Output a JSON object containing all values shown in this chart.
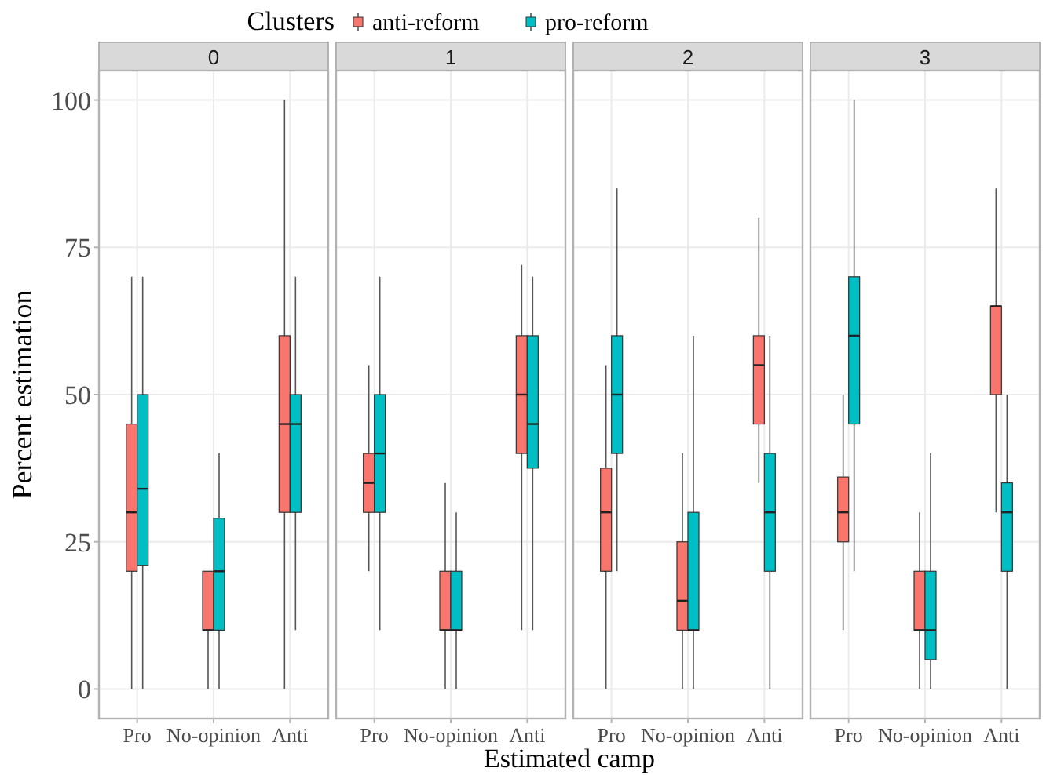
{
  "chart_data": [
    {
      "type": "box",
      "title": "0",
      "xlabel": "Estimated camp",
      "ylabel": "Percent estimation",
      "legend_title": "Clusters",
      "legend": "top",
      "grid": true,
      "categories": [
        "Pro",
        "No-opinion",
        "Anti"
      ],
      "ylim": [
        -5,
        105
      ],
      "yticks": [
        0,
        25,
        50,
        75,
        100
      ],
      "series": [
        {
          "name": "anti-reform",
          "color": "#f8766d",
          "boxes": [
            {
              "low": 0,
              "q1": 20,
              "median": 30,
              "q3": 45,
              "high": 70
            },
            {
              "low": 0,
              "q1": 10,
              "median": 10,
              "q3": 20,
              "high": 20
            },
            {
              "low": 0,
              "q1": 30,
              "median": 45,
              "q3": 60,
              "high": 100
            }
          ]
        },
        {
          "name": "pro-reform",
          "color": "#00bfc4",
          "boxes": [
            {
              "low": 0,
              "q1": 21,
              "median": 34,
              "q3": 50,
              "high": 70
            },
            {
              "low": 0,
              "q1": 10,
              "median": 20,
              "q3": 29,
              "high": 40
            },
            {
              "low": 10,
              "q1": 30,
              "median": 45,
              "q3": 50,
              "high": 70
            }
          ]
        }
      ]
    },
    {
      "type": "box",
      "title": "1",
      "grid": true,
      "tick_labels": "x",
      "categories": [
        "Pro",
        "No-opinion",
        "Anti"
      ],
      "ylim": [
        -5,
        105
      ],
      "yticks": [
        0,
        25,
        50,
        75,
        100
      ],
      "series": [
        {
          "color": "#f8766d",
          "boxes": [
            {
              "low": 20,
              "q1": 30,
              "median": 35,
              "q3": 40,
              "high": 55
            },
            {
              "low": 0,
              "q1": 10,
              "median": 10,
              "q3": 20,
              "high": 35
            },
            {
              "low": 10,
              "q1": 40,
              "median": 50,
              "q3": 60,
              "high": 72
            }
          ]
        },
        {
          "color": "#00bfc4",
          "boxes": [
            {
              "low": 10,
              "q1": 30,
              "median": 40,
              "q3": 50,
              "high": 70
            },
            {
              "low": 0,
              "q1": 10,
              "median": 10,
              "q3": 20,
              "high": 30
            },
            {
              "low": 10,
              "q1": 37.5,
              "median": 45,
              "q3": 60,
              "high": 70
            }
          ]
        }
      ]
    },
    {
      "type": "box",
      "title": "2",
      "grid": true,
      "tick_labels": "x",
      "categories": [
        "Pro",
        "No-opinion",
        "Anti"
      ],
      "ylim": [
        -5,
        105
      ],
      "yticks": [
        0,
        25,
        50,
        75,
        100
      ],
      "series": [
        {
          "color": "#f8766d",
          "boxes": [
            {
              "low": 0,
              "q1": 20,
              "median": 30,
              "q3": 37.5,
              "high": 55
            },
            {
              "low": 0,
              "q1": 10,
              "median": 15,
              "q3": 25,
              "high": 40
            },
            {
              "low": 35,
              "q1": 45,
              "median": 55,
              "q3": 60,
              "high": 80
            }
          ]
        },
        {
          "color": "#00bfc4",
          "boxes": [
            {
              "low": 20,
              "q1": 40,
              "median": 50,
              "q3": 60,
              "high": 85
            },
            {
              "low": 0,
              "q1": 10,
              "median": 10,
              "q3": 30,
              "high": 60
            },
            {
              "low": 0,
              "q1": 20,
              "median": 30,
              "q3": 40,
              "high": 60
            }
          ]
        }
      ]
    },
    {
      "type": "box",
      "title": "3",
      "grid": true,
      "tick_labels": "x",
      "categories": [
        "Pro",
        "No-opinion",
        "Anti"
      ],
      "ylim": [
        -5,
        105
      ],
      "yticks": [
        0,
        25,
        50,
        75,
        100
      ],
      "series": [
        {
          "color": "#f8766d",
          "boxes": [
            {
              "low": 10,
              "q1": 25,
              "median": 30,
              "q3": 36,
              "high": 50
            },
            {
              "low": 0,
              "q1": 10,
              "median": 10,
              "q3": 20,
              "high": 30
            },
            {
              "low": 30,
              "q1": 50,
              "median": 65,
              "q3": 65,
              "high": 85
            }
          ]
        },
        {
          "color": "#00bfc4",
          "boxes": [
            {
              "low": 20,
              "q1": 45,
              "median": 60,
              "q3": 70,
              "high": 100
            },
            {
              "low": 0,
              "q1": 5,
              "median": 10,
              "q3": 20,
              "high": 40
            },
            {
              "low": 0,
              "q1": 20,
              "median": 30,
              "q3": 35,
              "high": 50
            }
          ]
        }
      ]
    }
  ]
}
